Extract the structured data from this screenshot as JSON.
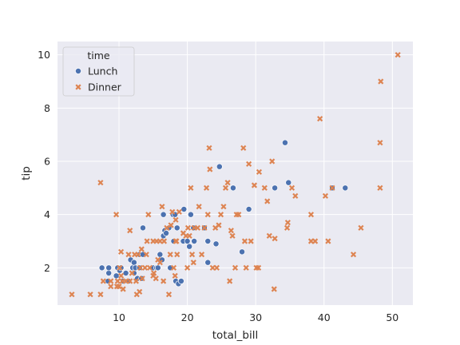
{
  "chart_data": {
    "type": "scatter",
    "xlabel": "total_bill",
    "ylabel": "tip",
    "xlim": [
      1,
      53
    ],
    "ylim": [
      0.6,
      10.5
    ],
    "xticks": [
      10,
      20,
      30,
      40,
      50
    ],
    "yticks": [
      2,
      4,
      6,
      8,
      10
    ],
    "grid": true,
    "background": "#eaeaf2",
    "grid_color": "#ffffff",
    "legend": {
      "title": "time",
      "placement": "top-left"
    },
    "series": [
      {
        "name": "Lunch",
        "marker": "circle",
        "color": "#4c72b0",
        "points": [
          [
            7.5,
            2.0
          ],
          [
            8.4,
            1.5
          ],
          [
            8.5,
            1.8
          ],
          [
            8.5,
            2.0
          ],
          [
            9.6,
            1.7
          ],
          [
            9.8,
            2.0
          ],
          [
            10.1,
            1.9
          ],
          [
            10.3,
            2.0
          ],
          [
            10.6,
            1.5
          ],
          [
            11.0,
            1.8
          ],
          [
            11.2,
            1.5
          ],
          [
            11.4,
            1.5
          ],
          [
            11.7,
            2.3
          ],
          [
            12.0,
            2.0
          ],
          [
            12.2,
            1.8
          ],
          [
            12.2,
            2.2
          ],
          [
            12.4,
            2.0
          ],
          [
            12.7,
            1.6
          ],
          [
            13.0,
            2.0
          ],
          [
            13.0,
            2.5
          ],
          [
            13.3,
            1.6
          ],
          [
            13.5,
            2.5
          ],
          [
            13.5,
            3.5
          ],
          [
            15.0,
            2.0
          ],
          [
            15.5,
            2.0
          ],
          [
            15.7,
            2.0
          ],
          [
            16.0,
            2.5
          ],
          [
            16.3,
            2.3
          ],
          [
            16.5,
            3.2
          ],
          [
            16.5,
            4.0
          ],
          [
            16.7,
            3.4
          ],
          [
            16.9,
            3.3
          ],
          [
            17.3,
            3.5
          ],
          [
            17.5,
            2.0
          ],
          [
            17.9,
            4.0
          ],
          [
            18.0,
            3.0
          ],
          [
            18.2,
            4.0
          ],
          [
            18.3,
            1.5
          ],
          [
            18.5,
            3.5
          ],
          [
            18.7,
            1.4
          ],
          [
            19.1,
            1.5
          ],
          [
            19.4,
            3.0
          ],
          [
            19.5,
            4.2
          ],
          [
            20.0,
            3.0
          ],
          [
            20.3,
            2.8
          ],
          [
            20.5,
            4.0
          ],
          [
            20.9,
            3.5
          ],
          [
            21.0,
            3.0
          ],
          [
            22.5,
            3.5
          ],
          [
            23.0,
            3.0
          ],
          [
            23.0,
            2.2
          ],
          [
            24.2,
            2.9
          ],
          [
            24.7,
            5.8
          ],
          [
            26.7,
            5.0
          ],
          [
            28.0,
            2.6
          ],
          [
            29.0,
            4.2
          ],
          [
            32.8,
            5.0
          ],
          [
            34.3,
            6.7
          ],
          [
            34.8,
            5.2
          ],
          [
            41.2,
            5.0
          ],
          [
            43.1,
            5.0
          ]
        ]
      },
      {
        "name": "Dinner",
        "marker": "x",
        "color": "#dd8452",
        "points": [
          [
            3.1,
            1.0
          ],
          [
            5.8,
            1.0
          ],
          [
            7.3,
            1.0
          ],
          [
            7.3,
            5.2
          ],
          [
            7.7,
            1.5
          ],
          [
            8.8,
            1.3
          ],
          [
            8.8,
            1.5
          ],
          [
            9.6,
            4.0
          ],
          [
            9.7,
            1.3
          ],
          [
            9.8,
            1.5
          ],
          [
            10.0,
            1.3
          ],
          [
            10.1,
            2.0
          ],
          [
            10.3,
            1.7
          ],
          [
            10.3,
            2.6
          ],
          [
            10.5,
            1.5
          ],
          [
            10.6,
            1.2
          ],
          [
            11.0,
            1.5
          ],
          [
            11.4,
            2.5
          ],
          [
            11.6,
            1.5
          ],
          [
            11.6,
            3.4
          ],
          [
            11.9,
            1.8
          ],
          [
            12.3,
            2.5
          ],
          [
            12.5,
            1.5
          ],
          [
            12.6,
            1.0
          ],
          [
            12.8,
            2.5
          ],
          [
            13.0,
            1.1
          ],
          [
            13.1,
            2.0
          ],
          [
            13.3,
            2.7
          ],
          [
            13.4,
            1.6
          ],
          [
            13.8,
            2.0
          ],
          [
            14.0,
            2.5
          ],
          [
            14.1,
            3.0
          ],
          [
            14.3,
            4.0
          ],
          [
            14.5,
            2.0
          ],
          [
            15.0,
            3.0
          ],
          [
            15.0,
            1.7
          ],
          [
            15.1,
            1.8
          ],
          [
            15.4,
            1.6
          ],
          [
            15.5,
            3.0
          ],
          [
            15.7,
            2.3
          ],
          [
            16.0,
            2.2
          ],
          [
            16.0,
            3.0
          ],
          [
            16.3,
            4.3
          ],
          [
            16.5,
            1.5
          ],
          [
            16.6,
            3.0
          ],
          [
            17.0,
            3.5
          ],
          [
            17.3,
            1.0
          ],
          [
            17.5,
            2.5
          ],
          [
            17.6,
            3.6
          ],
          [
            17.8,
            4.1
          ],
          [
            18.0,
            2.0
          ],
          [
            18.2,
            1.7
          ],
          [
            18.3,
            3.0
          ],
          [
            18.3,
            3.8
          ],
          [
            18.4,
            3.0
          ],
          [
            18.5,
            2.5
          ],
          [
            18.8,
            4.1
          ],
          [
            19.4,
            3.3
          ],
          [
            19.8,
            3.2
          ],
          [
            20.0,
            2.0
          ],
          [
            20.1,
            3.5
          ],
          [
            20.3,
            3.2
          ],
          [
            20.5,
            5.0
          ],
          [
            20.7,
            2.5
          ],
          [
            20.9,
            2.2
          ],
          [
            21.0,
            3.5
          ],
          [
            21.5,
            3.5
          ],
          [
            21.7,
            4.3
          ],
          [
            22.1,
            2.5
          ],
          [
            22.5,
            3.5
          ],
          [
            22.8,
            5.0
          ],
          [
            23.0,
            4.0
          ],
          [
            23.2,
            6.5
          ],
          [
            23.3,
            5.7
          ],
          [
            23.7,
            2.0
          ],
          [
            24.1,
            3.5
          ],
          [
            24.3,
            2.0
          ],
          [
            24.6,
            3.6
          ],
          [
            24.9,
            4.0
          ],
          [
            25.3,
            4.3
          ],
          [
            25.6,
            5.0
          ],
          [
            25.9,
            5.2
          ],
          [
            26.2,
            1.5
          ],
          [
            26.4,
            3.4
          ],
          [
            26.6,
            3.2
          ],
          [
            27.0,
            2.0
          ],
          [
            27.2,
            4.0
          ],
          [
            27.5,
            4.0
          ],
          [
            28.2,
            6.5
          ],
          [
            28.4,
            3.0
          ],
          [
            28.6,
            2.0
          ],
          [
            29.0,
            5.9
          ],
          [
            29.3,
            3.0
          ],
          [
            29.8,
            5.1
          ],
          [
            30.1,
            2.0
          ],
          [
            30.4,
            2.0
          ],
          [
            30.5,
            5.6
          ],
          [
            31.3,
            5.0
          ],
          [
            31.7,
            4.5
          ],
          [
            32.0,
            3.2
          ],
          [
            32.4,
            6.0
          ],
          [
            32.7,
            1.2
          ],
          [
            32.8,
            3.1
          ],
          [
            34.6,
            3.5
          ],
          [
            34.7,
            3.7
          ],
          [
            35.3,
            5.0
          ],
          [
            35.8,
            4.7
          ],
          [
            38.1,
            4.0
          ],
          [
            38.1,
            3.0
          ],
          [
            38.7,
            3.0
          ],
          [
            39.4,
            7.6
          ],
          [
            40.2,
            4.7
          ],
          [
            40.6,
            3.0
          ],
          [
            41.2,
            5.0
          ],
          [
            44.3,
            2.5
          ],
          [
            45.4,
            3.5
          ],
          [
            48.2,
            5.0
          ],
          [
            48.2,
            6.7
          ],
          [
            48.3,
            9.0
          ],
          [
            50.8,
            10.0
          ]
        ]
      }
    ]
  }
}
